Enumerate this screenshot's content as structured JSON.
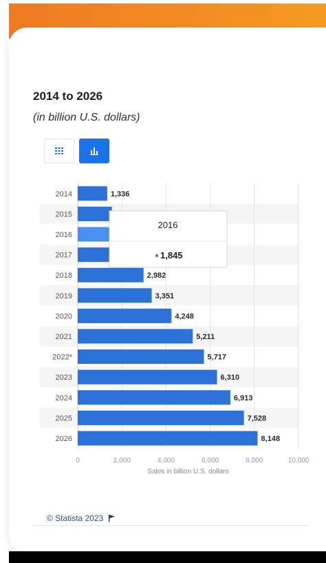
{
  "title": "2014 to 2026",
  "subtitle": "(in billion U.S. dollars)",
  "icons": {
    "table_toggle": "grid-icon",
    "bar_toggle": "bar-chart-icon",
    "footer_flag": "flag-icon"
  },
  "colors": {
    "bar": "#2b71d8",
    "bar_hover": "#4a90f0",
    "toggle_active": "#1a73e8",
    "header_orange": "#f07a22"
  },
  "chart_data": {
    "type": "bar",
    "orientation": "horizontal",
    "categories": [
      "2014",
      "2015",
      "2016",
      "2017",
      "2018",
      "2019",
      "2020",
      "2021",
      "2022*",
      "2023",
      "2024",
      "2025",
      "2026"
    ],
    "values": [
      1336,
      1548,
      1845,
      2352,
      2982,
      3351,
      4248,
      5211,
      5717,
      6310,
      6913,
      7528,
      8148
    ],
    "value_labels": [
      "1,336",
      "",
      "",
      "",
      "2,982",
      "3,351",
      "4,248",
      "5,211",
      "5,717",
      "6,310",
      "6,913",
      "7,528",
      "8,148"
    ],
    "xlabel": "Sales in billion U.S. dollars",
    "ylabel": "",
    "xlim": [
      0,
      10000
    ],
    "xticks": [
      0,
      2000,
      4000,
      6000,
      8000,
      10000
    ],
    "xtick_labels": [
      "0",
      "2,000",
      "4,000",
      "6,000",
      "8,000",
      "10,000"
    ],
    "grid": true
  },
  "tooltip": {
    "title": "2016",
    "value": "1,845"
  },
  "footer": {
    "source": "© Statista 2023"
  }
}
